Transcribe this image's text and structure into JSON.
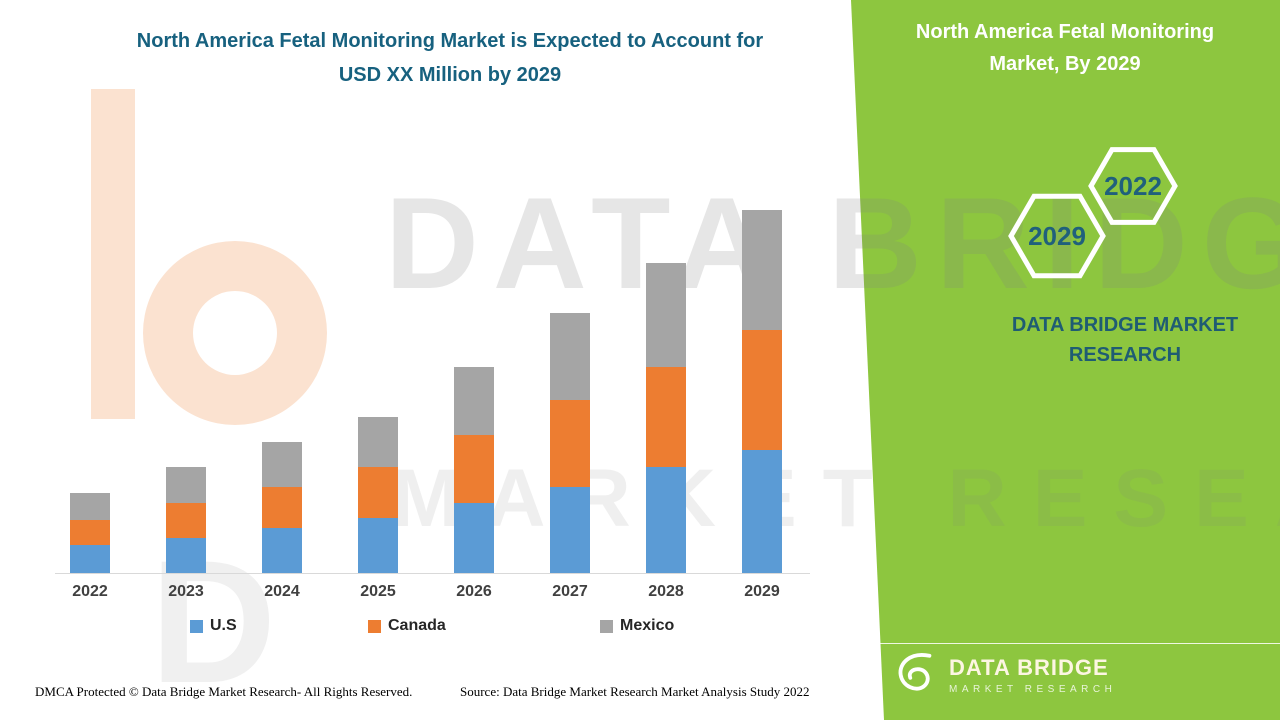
{
  "title": "North America Fetal Monitoring Market is Expected to Account for USD XX Million by 2029",
  "side_panel": {
    "title": "North America Fetal Monitoring Market, By 2029",
    "hexagon_years": [
      "2029",
      "2022"
    ],
    "brand_text": "DATA BRIDGE MARKET RESEARCH"
  },
  "chart_data": {
    "type": "bar",
    "stacked": true,
    "title": "North America Fetal Monitoring Market is Expected to Account for USD XX Million by 2029",
    "categories": [
      "2022",
      "2023",
      "2024",
      "2025",
      "2026",
      "2027",
      "2028",
      "2029"
    ],
    "series": [
      {
        "name": "U.S",
        "color": "#5b9bd5",
        "values": [
          28,
          35,
          45,
          55,
          70,
          86,
          106,
          123
        ]
      },
      {
        "name": "Canada",
        "color": "#ed7d31",
        "values": [
          25,
          35,
          41,
          51,
          68,
          87,
          100,
          120
        ]
      },
      {
        "name": "Mexico",
        "color": "#a5a5a5",
        "values": [
          27,
          36,
          45,
          50,
          68,
          87,
          104,
          120
        ]
      }
    ],
    "xlabel": "",
    "ylabel": "",
    "y_axis_visible": false,
    "grid": false,
    "legend_position": "bottom"
  },
  "watermark": {
    "line1": "DATA BRIDGE",
    "line2": "MARKET RESEARCH"
  },
  "logo": {
    "name": "DATA BRIDGE",
    "sub": "MARKET RESEARCH"
  },
  "footer": {
    "dmca": "DMCA Protected © Data Bridge Market Research- All Rights Reserved.",
    "source": "Source: Data Bridge Market Research Market Analysis Study 2022"
  },
  "colors": {
    "panel_green": "#8dc63f",
    "teal": "#1f5c73",
    "title_teal": "#17617f"
  }
}
